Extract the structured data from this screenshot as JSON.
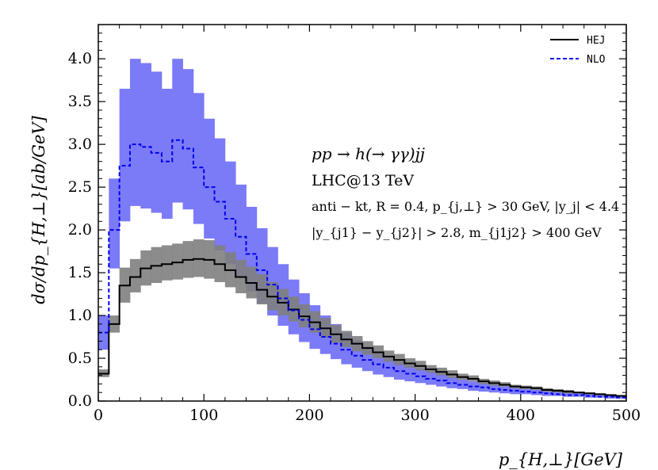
{
  "chart_data": {
    "type": "line",
    "title": "",
    "xlabel": "p_{H,⊥}[GeV]",
    "ylabel": "dσ/dp_{H,⊥}[ab/GeV]",
    "xlim": [
      0,
      500
    ],
    "ylim": [
      0,
      4.4
    ],
    "xticks": [
      0,
      100,
      200,
      300,
      400,
      500
    ],
    "yticks": [
      0.0,
      0.5,
      1.0,
      1.5,
      2.0,
      2.5,
      3.0,
      3.5,
      4.0
    ],
    "xtick_labels": [
      "0",
      "100",
      "200",
      "300",
      "400",
      "500"
    ],
    "ytick_labels": [
      "0.0",
      "0.5",
      "1.0",
      "1.5",
      "2.0",
      "2.5",
      "3.0",
      "3.5",
      "4.0"
    ],
    "grid": false,
    "legend_position": "top-right",
    "bin_width": 10,
    "x_bin_edges_start": 0,
    "series": [
      {
        "name": "HEJ",
        "style": "solid",
        "color": "#000000",
        "band_color": "#808080",
        "central": [
          0.32,
          0.9,
          1.35,
          1.45,
          1.55,
          1.58,
          1.6,
          1.62,
          1.65,
          1.66,
          1.65,
          1.6,
          1.53,
          1.45,
          1.38,
          1.3,
          1.22,
          1.15,
          1.07,
          0.99,
          0.92,
          0.85,
          0.78,
          0.72,
          0.67,
          0.62,
          0.57,
          0.52,
          0.48,
          0.44,
          0.41,
          0.37,
          0.34,
          0.31,
          0.28,
          0.26,
          0.23,
          0.21,
          0.19,
          0.17,
          0.16,
          0.15,
          0.13,
          0.12,
          0.11,
          0.1,
          0.09,
          0.08,
          0.07,
          0.06
        ],
        "low": [
          0.28,
          0.8,
          1.15,
          1.27,
          1.35,
          1.38,
          1.41,
          1.42,
          1.44,
          1.45,
          1.43,
          1.39,
          1.33,
          1.26,
          1.2,
          1.13,
          1.06,
          1.0,
          0.93,
          0.86,
          0.8,
          0.74,
          0.68,
          0.63,
          0.58,
          0.54,
          0.5,
          0.46,
          0.42,
          0.39,
          0.36,
          0.33,
          0.3,
          0.27,
          0.25,
          0.23,
          0.2,
          0.18,
          0.17,
          0.15,
          0.14,
          0.13,
          0.11,
          0.1,
          0.09,
          0.09,
          0.08,
          0.07,
          0.06,
          0.05
        ],
        "high": [
          0.37,
          1.0,
          1.56,
          1.66,
          1.76,
          1.8,
          1.82,
          1.84,
          1.87,
          1.89,
          1.88,
          1.82,
          1.74,
          1.65,
          1.57,
          1.48,
          1.39,
          1.31,
          1.22,
          1.13,
          1.05,
          0.97,
          0.89,
          0.82,
          0.76,
          0.7,
          0.65,
          0.59,
          0.55,
          0.5,
          0.47,
          0.42,
          0.39,
          0.36,
          0.32,
          0.3,
          0.26,
          0.24,
          0.22,
          0.19,
          0.18,
          0.17,
          0.15,
          0.14,
          0.13,
          0.11,
          0.1,
          0.09,
          0.08,
          0.07
        ]
      },
      {
        "name": "NLO",
        "style": "dashed",
        "color": "#0000ee",
        "band_color": "#7b7bf7",
        "central": [
          0.8,
          2.0,
          2.75,
          3.0,
          2.97,
          2.9,
          2.8,
          3.05,
          2.95,
          2.73,
          2.5,
          2.33,
          2.13,
          1.92,
          1.72,
          1.53,
          1.36,
          1.2,
          1.06,
          0.95,
          0.84,
          0.75,
          0.67,
          0.6,
          0.53,
          0.48,
          0.43,
          0.39,
          0.35,
          0.32,
          0.29,
          0.26,
          0.24,
          0.21,
          0.19,
          0.17,
          0.16,
          0.14,
          0.13,
          0.12,
          0.11,
          0.1,
          0.09,
          0.08,
          0.07,
          0.07,
          0.06,
          0.05,
          0.05,
          0.04
        ],
        "low": [
          0.6,
          1.55,
          2.1,
          2.28,
          2.25,
          2.2,
          2.13,
          2.32,
          2.24,
          2.07,
          1.9,
          1.76,
          1.6,
          1.44,
          1.28,
          1.14,
          1.0,
          0.88,
          0.78,
          0.69,
          0.61,
          0.55,
          0.49,
          0.43,
          0.39,
          0.35,
          0.31,
          0.28,
          0.25,
          0.23,
          0.21,
          0.19,
          0.17,
          0.15,
          0.14,
          0.12,
          0.11,
          0.1,
          0.09,
          0.08,
          0.08,
          0.07,
          0.06,
          0.06,
          0.05,
          0.05,
          0.04,
          0.04,
          0.03,
          0.03
        ],
        "high": [
          1.0,
          2.6,
          3.65,
          4.0,
          3.95,
          3.85,
          3.65,
          4.0,
          3.88,
          3.6,
          3.3,
          3.07,
          2.8,
          2.53,
          2.27,
          2.02,
          1.8,
          1.6,
          1.42,
          1.26,
          1.12,
          1.0,
          0.9,
          0.8,
          0.71,
          0.64,
          0.57,
          0.52,
          0.47,
          0.42,
          0.38,
          0.35,
          0.32,
          0.28,
          0.25,
          0.23,
          0.21,
          0.19,
          0.17,
          0.16,
          0.14,
          0.13,
          0.12,
          0.11,
          0.1,
          0.09,
          0.08,
          0.07,
          0.06,
          0.05
        ]
      }
    ],
    "annotations": [
      "pp → h(→ γγ)jj",
      "LHC@13 TeV",
      "anti − kt, R = 0.4, p_{j,⊥} > 30 GeV, |y_j| < 4.4",
      "|y_{j1} − y_{j2}| > 2.8, m_{j1j2} > 400 GeV"
    ]
  }
}
